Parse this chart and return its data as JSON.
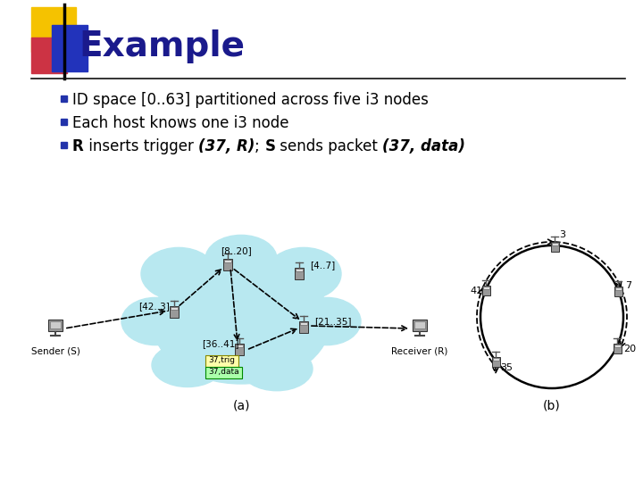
{
  "title": "Example",
  "title_color": "#1a1a8c",
  "bg_color": "#ffffff",
  "bullet_square_color": "#2233aa",
  "yellow_square": "#f5c200",
  "red_square": "#cc3344",
  "blue_square": "#2233bb",
  "cloud_color": "#b8e8f0",
  "label_a": "(a)",
  "label_b": "(b)",
  "node_labels_a": [
    "[8..20]",
    "[4..7]",
    "[42..3]",
    "[36..41]",
    "[21..35]"
  ],
  "ring_labels": [
    "3",
    "7",
    "20",
    "35",
    "41"
  ],
  "ring_angles": [
    88,
    22,
    335,
    218,
    157
  ]
}
